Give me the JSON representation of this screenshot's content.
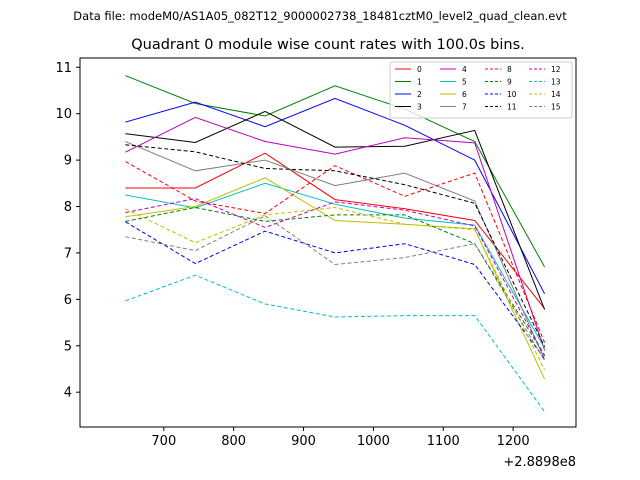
{
  "chart_data": {
    "type": "line",
    "suptitle": "Data file: modeM0/AS1A05_082T12_9000002738_18481cztM0_level2_quad_clean.evt",
    "title": "Quadrant 0 module wise count rates with 100.0s bins.",
    "xlabel": "",
    "ylabel": "",
    "x_offset_label": "+2.8898e8",
    "x": [
      645,
      745,
      845,
      945,
      1045,
      1145,
      1245
    ],
    "xlim": [
      580,
      1290
    ],
    "ylim": [
      3.25,
      11.2
    ],
    "x_ticks": [
      700,
      800,
      900,
      1000,
      1100,
      1200
    ],
    "y_ticks": [
      4,
      5,
      6,
      7,
      8,
      9,
      10,
      11
    ],
    "grid": false,
    "legend_position": "top-right",
    "series": [
      {
        "name": "0",
        "color": "#ff0000",
        "dash": "solid",
        "values": [
          8.4,
          8.4,
          9.15,
          8.15,
          7.95,
          7.7,
          5.8
        ]
      },
      {
        "name": "1",
        "color": "#008000",
        "dash": "solid",
        "values": [
          10.82,
          10.22,
          9.95,
          10.6,
          10.1,
          9.4,
          6.7
        ]
      },
      {
        "name": "2",
        "color": "#0000ff",
        "dash": "solid",
        "values": [
          9.82,
          10.25,
          9.72,
          10.33,
          9.75,
          9.0,
          6.12
        ]
      },
      {
        "name": "3",
        "color": "#000000",
        "dash": "solid",
        "values": [
          9.57,
          9.38,
          10.05,
          9.28,
          9.3,
          9.64,
          5.78
        ]
      },
      {
        "name": "4",
        "color": "#bf00bf",
        "dash": "solid",
        "values": [
          9.17,
          9.92,
          9.4,
          9.13,
          9.48,
          9.37,
          4.9
        ]
      },
      {
        "name": "5",
        "color": "#00bfbf",
        "dash": "solid",
        "values": [
          8.25,
          7.97,
          8.5,
          8.05,
          7.75,
          7.6,
          4.95
        ]
      },
      {
        "name": "6",
        "color": "#bfbf00",
        "dash": "solid",
        "values": [
          7.78,
          8.0,
          8.62,
          7.7,
          7.62,
          7.52,
          4.28
        ]
      },
      {
        "name": "7",
        "color": "#808080",
        "dash": "solid",
        "values": [
          9.4,
          8.77,
          9.0,
          8.45,
          8.72,
          8.12,
          4.7
        ]
      },
      {
        "name": "8",
        "color": "#ff0000",
        "dash": "dashed",
        "values": [
          8.97,
          8.12,
          7.85,
          8.88,
          8.22,
          8.72,
          5.07
        ]
      },
      {
        "name": "9",
        "color": "#008000",
        "dash": "dashed",
        "values": [
          7.68,
          7.98,
          7.68,
          7.82,
          7.82,
          7.2,
          4.8
        ]
      },
      {
        "name": "10",
        "color": "#0000ff",
        "dash": "dashed",
        "values": [
          7.67,
          6.77,
          7.47,
          7.0,
          7.2,
          6.75,
          4.72
        ]
      },
      {
        "name": "11",
        "color": "#000000",
        "dash": "dashed",
        "values": [
          9.33,
          9.18,
          8.82,
          8.77,
          8.47,
          8.07,
          4.98
        ]
      },
      {
        "name": "12",
        "color": "#bf00bf",
        "dash": "dashed",
        "values": [
          7.87,
          8.17,
          7.55,
          8.1,
          7.92,
          7.58,
          4.78
        ]
      },
      {
        "name": "13",
        "color": "#00bfbf",
        "dash": "dashed",
        "values": [
          5.97,
          6.52,
          5.9,
          5.62,
          5.65,
          5.65,
          3.58
        ]
      },
      {
        "name": "14",
        "color": "#bfbf00",
        "dash": "dashed",
        "values": [
          7.95,
          7.22,
          7.82,
          7.98,
          7.62,
          7.5,
          4.48
        ]
      },
      {
        "name": "15",
        "color": "#808080",
        "dash": "dashed",
        "values": [
          7.35,
          7.05,
          7.8,
          6.75,
          6.9,
          7.2,
          4.68
        ]
      }
    ]
  }
}
